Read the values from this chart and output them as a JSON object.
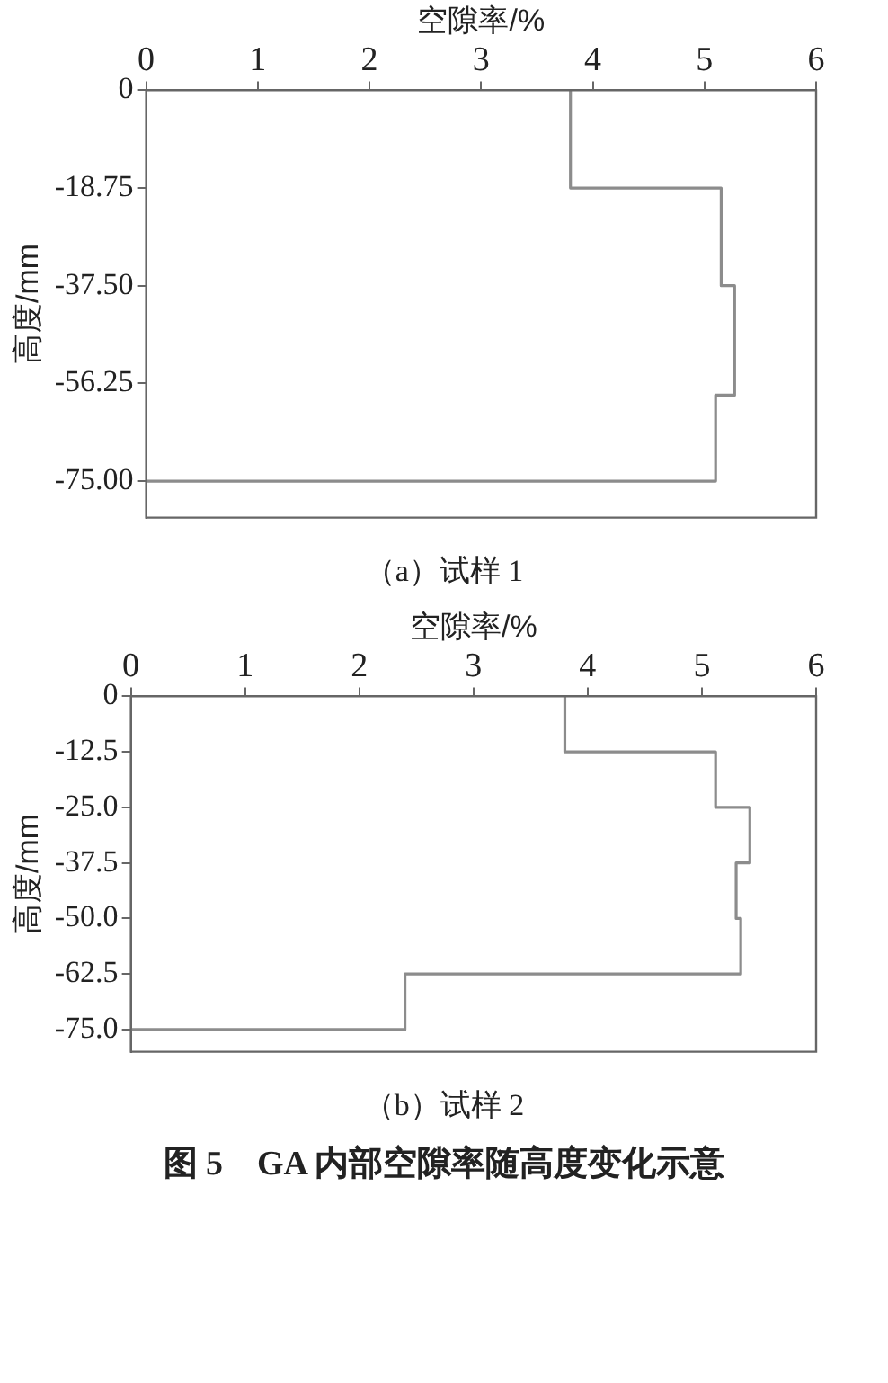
{
  "chart_data": [
    {
      "type": "line",
      "xlabel": "空隙率/%",
      "ylabel": "高度/mm",
      "subtitle": "（a）试样 1",
      "xlim": [
        0,
        6
      ],
      "xticks": [
        0,
        1,
        2,
        3,
        4,
        5,
        6
      ],
      "ylim": [
        -82,
        0
      ],
      "yticks": [
        0,
        -18.75,
        {
          "value": -37.5,
          "label": "-37.50"
        },
        -56.25,
        {
          "value": -75,
          "label": "-75.00"
        }
      ],
      "grid": false,
      "legend": false,
      "marker": "none",
      "line_style": "solid",
      "series": [
        {
          "color": "#8c8c8c",
          "x": [
            3.8,
            3.8,
            5.15,
            5.15,
            5.27,
            5.27,
            5.1,
            5.1,
            0
          ],
          "values": [
            0,
            -18.75,
            -18.75,
            -37.5,
            -37.5,
            -58.5,
            -58.5,
            -75,
            -75
          ]
        }
      ]
    },
    {
      "type": "line",
      "xlabel": "空隙率/%",
      "ylabel": "高度/mm",
      "subtitle": "（b）试样 2",
      "annotations": [
        "图 5　GA 内部空隙率随高度变化示意"
      ],
      "xlim": [
        0,
        6
      ],
      "xticks": [
        0,
        1,
        2,
        3,
        4,
        5,
        6
      ],
      "ylim": [
        -80,
        0
      ],
      "yticks": [
        0,
        -12.5,
        {
          "value": -25,
          "label": "-25.0"
        },
        -37.5,
        {
          "value": -50,
          "label": "-50.0"
        },
        -62.5,
        {
          "value": -75,
          "label": "-75.0"
        }
      ],
      "grid": false,
      "legend": false,
      "marker": "none",
      "line_style": "solid",
      "series": [
        {
          "color": "#8c8c8c",
          "x": [
            3.8,
            3.8,
            5.12,
            5.12,
            5.42,
            5.42,
            5.3,
            5.3,
            5.34,
            5.34,
            2.4,
            2.4,
            0
          ],
          "values": [
            0,
            -12.5,
            -12.5,
            -25,
            -25,
            -37.5,
            -37.5,
            -50,
            -50,
            -62.5,
            -62.5,
            -75,
            -75
          ]
        }
      ]
    }
  ]
}
